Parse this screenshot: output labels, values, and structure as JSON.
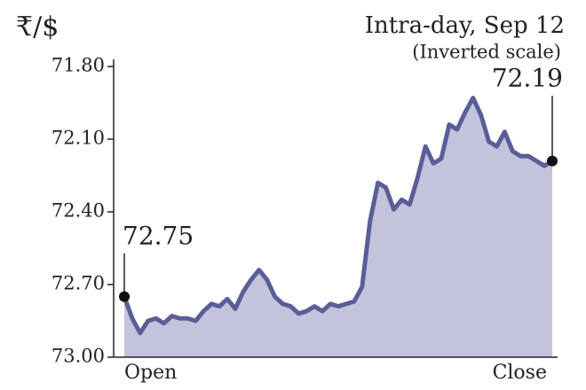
{
  "chart_data": {
    "type": "area",
    "y_label": "₹/$",
    "title": "Intra-day, Sep 12",
    "subtitle": "(Inverted scale)",
    "categories": [
      "Open",
      null,
      null,
      null,
      null,
      null,
      null,
      null,
      null,
      null,
      null,
      null,
      null,
      null,
      null,
      null,
      null,
      null,
      null,
      null,
      null,
      null,
      null,
      null,
      null,
      null,
      null,
      null,
      null,
      null,
      null,
      null,
      null,
      null,
      null,
      null,
      null,
      null,
      null,
      null,
      null,
      null,
      null,
      null,
      null,
      null,
      null,
      null,
      null,
      null,
      null,
      null,
      null,
      null,
      "Close"
    ],
    "values": [
      72.75,
      72.84,
      72.9,
      72.85,
      72.84,
      72.86,
      72.83,
      72.84,
      72.84,
      72.85,
      72.81,
      72.78,
      72.79,
      72.76,
      72.8,
      72.73,
      72.68,
      72.64,
      72.68,
      72.75,
      72.78,
      72.79,
      72.82,
      72.81,
      72.79,
      72.81,
      72.78,
      72.79,
      72.78,
      72.77,
      72.71,
      72.44,
      72.28,
      72.3,
      72.39,
      72.35,
      72.37,
      72.26,
      72.13,
      72.2,
      72.18,
      72.04,
      72.06,
      71.99,
      71.93,
      72.0,
      72.11,
      72.13,
      72.07,
      72.15,
      72.17,
      72.17,
      72.19,
      72.21,
      72.19
    ],
    "color": "#5a5e96",
    "fill_color": "#c3c4dc",
    "ylim": [
      71.8,
      73.0
    ],
    "y_inverted": true,
    "yticks": [
      {
        "value": 71.8,
        "label": "71.80"
      },
      {
        "value": 72.1,
        "label": "72.10"
      },
      {
        "value": 72.4,
        "label": "72.40"
      },
      {
        "value": 72.7,
        "label": "72.70"
      },
      {
        "value": 73.0,
        "label": "73.00"
      }
    ]
  }
}
